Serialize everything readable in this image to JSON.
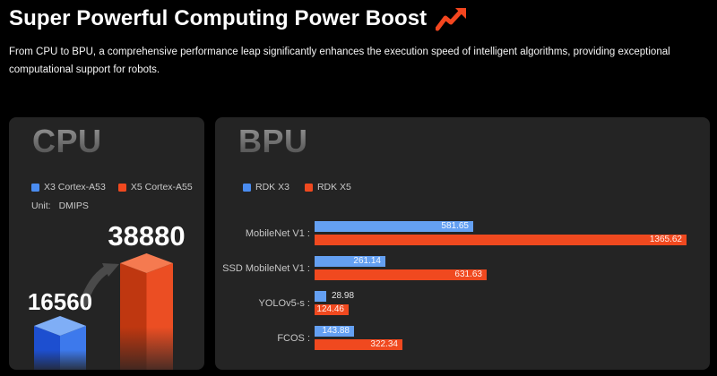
{
  "header": {
    "title": "Super Powerful Computing Power Boost",
    "icon": "trending-up-arrow-icon",
    "icon_color": "#F4461F",
    "subtitle": "From CPU to BPU, a comprehensive performance leap significantly enhances the execution speed of intelligent algorithms, providing exceptional computational support for robots."
  },
  "colors": {
    "page_bg": "#000000",
    "panel_bg": "#242424",
    "x3_blue": "#64A0F2",
    "x5_orange": "#F0491F"
  },
  "cpu_panel": {
    "heading": "CPU",
    "legend": [
      {
        "label": "X3 Cortex-A53",
        "color": "#4A8CF0"
      },
      {
        "label": "X5 Cortex-A55",
        "color": "#F0491F"
      }
    ],
    "unit_label": "Unit:",
    "unit_value": "DMIPS"
  },
  "bpu_panel": {
    "heading": "BPU",
    "legend": [
      {
        "label": "RDK X3",
        "color": "#4A8CF0"
      },
      {
        "label": "RDK X5",
        "color": "#F0491F"
      }
    ],
    "row_labels": [
      "MobileNet V1 :",
      "SSD MobileNet V1 :",
      "YOLOv5-s :",
      "FCOS :"
    ]
  },
  "chart_data": [
    {
      "type": "bar",
      "title": "CPU",
      "ylabel": "DMIPS",
      "categories": [
        "X3 Cortex-A53",
        "X5 Cortex-A55"
      ],
      "values": [
        16560,
        38880
      ],
      "style": "3d-isometric",
      "colors": [
        "#3D79EC",
        "#EB4E23"
      ]
    },
    {
      "type": "bar",
      "title": "BPU",
      "orientation": "horizontal",
      "categories": [
        "MobileNet V1",
        "SSD MobileNet V1",
        "YOLOv5-s",
        "FCOS"
      ],
      "series": [
        {
          "name": "RDK X3",
          "values": [
            581.65,
            261.14,
            28.98,
            143.88
          ]
        },
        {
          "name": "RDK X5",
          "values": [
            1365.62,
            631.63,
            124.46,
            322.34
          ]
        }
      ],
      "xlim": [
        0,
        1365.62
      ],
      "legend_position": "top",
      "grid": false
    }
  ]
}
